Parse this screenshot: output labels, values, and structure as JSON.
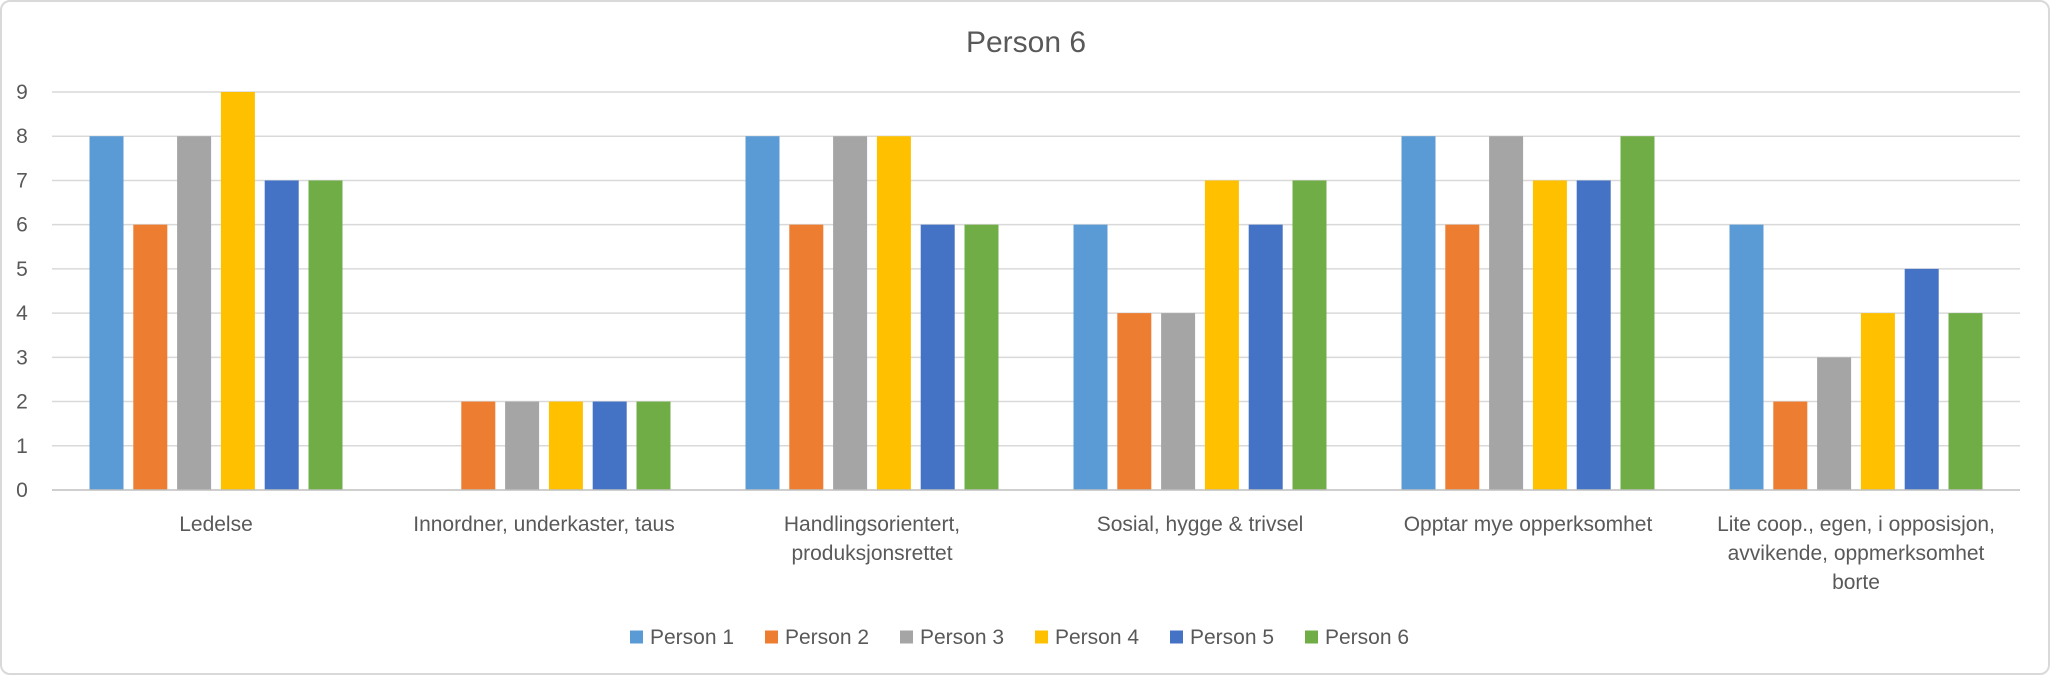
{
  "chart_data": {
    "type": "bar",
    "title": "Person 6",
    "categories": [
      [
        "Ledelse"
      ],
      [
        "Innordner, underkaster, taus"
      ],
      [
        "Handlingsorientert,",
        "produksjonsrettet"
      ],
      [
        "Sosial, hygge & trivsel"
      ],
      [
        "Opptar mye opperksomhet"
      ],
      [
        "Lite coop., egen, i opposisjon,",
        "avvikende, oppmerksomhet",
        "borte"
      ]
    ],
    "series": [
      {
        "name": "Person 1",
        "color": "#5B9BD5",
        "values": [
          8,
          0,
          8,
          6,
          8,
          6
        ]
      },
      {
        "name": "Person 2",
        "color": "#ED7D31",
        "values": [
          6,
          2,
          6,
          4,
          6,
          2
        ]
      },
      {
        "name": "Person 3",
        "color": "#A5A5A5",
        "values": [
          8,
          2,
          8,
          4,
          8,
          3
        ]
      },
      {
        "name": "Person 4",
        "color": "#FFC000",
        "values": [
          9,
          2,
          8,
          7,
          7,
          4
        ]
      },
      {
        "name": "Person 5",
        "color": "#4472C4",
        "values": [
          7,
          2,
          6,
          6,
          7,
          5
        ]
      },
      {
        "name": "Person 6",
        "color": "#70AD47",
        "values": [
          7,
          2,
          6,
          7,
          8,
          4
        ]
      }
    ],
    "ylim": [
      0,
      9
    ],
    "yticks": [
      0,
      1,
      2,
      3,
      4,
      5,
      6,
      7,
      8,
      9
    ],
    "grid": true,
    "legend_position": "bottom"
  }
}
